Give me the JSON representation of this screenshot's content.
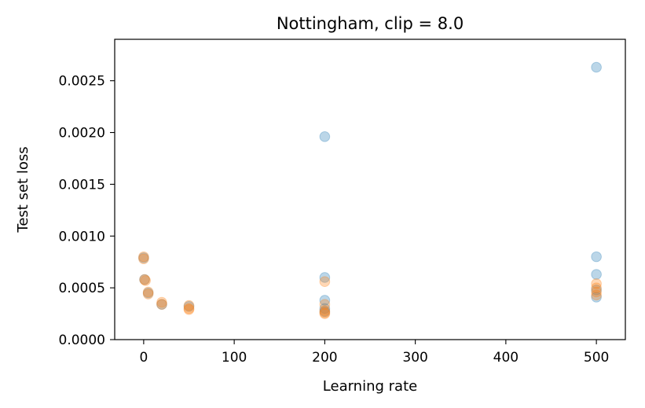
{
  "chart_data": {
    "type": "scatter",
    "title": "Nottingham, clip = 8.0",
    "xlabel": "Learning rate",
    "ylabel": "Test set loss",
    "xlim": [
      -32,
      532
    ],
    "ylim": [
      0,
      0.0029
    ],
    "xticks": [
      0,
      100,
      200,
      300,
      400,
      500
    ],
    "xtick_labels": [
      "0",
      "100",
      "200",
      "300",
      "400",
      "500"
    ],
    "yticks": [
      0,
      0.0005,
      0.001,
      0.0015,
      0.002,
      0.0025
    ],
    "ytick_labels": [
      "0.0000",
      "0.0005",
      "0.0010",
      "0.0015",
      "0.0020",
      "0.0025"
    ],
    "grid": false,
    "legend": false,
    "series": [
      {
        "color": "#1f77b4",
        "opacity": 0.3,
        "points": [
          {
            "x": 0,
            "y": 0.00079
          },
          {
            "x": 1,
            "y": 0.00058
          },
          {
            "x": 5,
            "y": 0.00045
          },
          {
            "x": 20,
            "y": 0.00034
          },
          {
            "x": 50,
            "y": 0.00032
          },
          {
            "x": 200,
            "y": 0.00196
          },
          {
            "x": 200,
            "y": 0.0006
          },
          {
            "x": 200,
            "y": 0.00038
          },
          {
            "x": 200,
            "y": 0.0003
          },
          {
            "x": 200,
            "y": 0.00027
          },
          {
            "x": 500,
            "y": 0.00263
          },
          {
            "x": 500,
            "y": 0.0008
          },
          {
            "x": 500,
            "y": 0.00063
          },
          {
            "x": 500,
            "y": 0.00048
          },
          {
            "x": 500,
            "y": 0.00041
          }
        ]
      },
      {
        "color": "#ff7f0e",
        "opacity": 0.3,
        "points": [
          {
            "x": 0,
            "y": 0.0008
          },
          {
            "x": 0,
            "y": 0.00078
          },
          {
            "x": 1,
            "y": 0.00058
          },
          {
            "x": 2,
            "y": 0.00057
          },
          {
            "x": 5,
            "y": 0.00046
          },
          {
            "x": 5,
            "y": 0.00044
          },
          {
            "x": 20,
            "y": 0.00036
          },
          {
            "x": 20,
            "y": 0.00034
          },
          {
            "x": 50,
            "y": 0.00033
          },
          {
            "x": 50,
            "y": 0.0003
          },
          {
            "x": 50,
            "y": 0.00029
          },
          {
            "x": 200,
            "y": 0.00056
          },
          {
            "x": 200,
            "y": 0.00034
          },
          {
            "x": 200,
            "y": 0.00028
          },
          {
            "x": 200,
            "y": 0.00026
          },
          {
            "x": 200,
            "y": 0.00025
          },
          {
            "x": 500,
            "y": 0.00054
          },
          {
            "x": 500,
            "y": 0.0005
          },
          {
            "x": 500,
            "y": 0.00046
          },
          {
            "x": 500,
            "y": 0.00043
          }
        ]
      }
    ]
  }
}
